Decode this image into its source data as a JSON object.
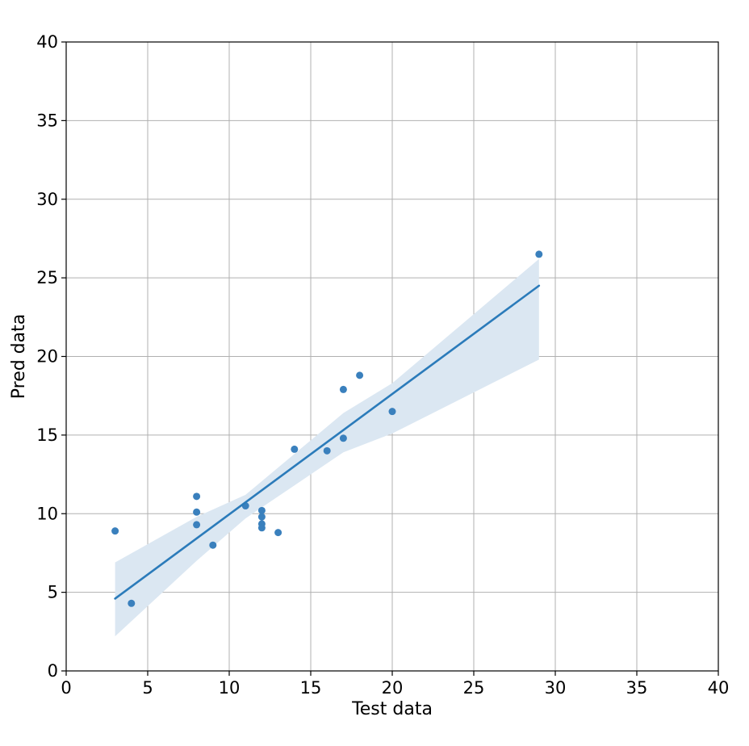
{
  "chart_data": {
    "type": "scatter",
    "xlabel": "Test data",
    "ylabel": "Pred data",
    "xlim": [
      0,
      40
    ],
    "ylim": [
      0,
      40
    ],
    "xticks": [
      "0",
      "5",
      "10",
      "15",
      "20",
      "25",
      "30",
      "35",
      "40"
    ],
    "yticks": [
      "0",
      "5",
      "10",
      "15",
      "20",
      "25",
      "30",
      "35",
      "40"
    ],
    "grid": true,
    "colors": {
      "points": "#3a80bd",
      "line": "#2b7bba",
      "band": "#dbe7f2",
      "grid": "#b0b0b0"
    },
    "points": [
      {
        "x": 3,
        "y": 8.9
      },
      {
        "x": 4,
        "y": 4.3
      },
      {
        "x": 8,
        "y": 11.1
      },
      {
        "x": 8,
        "y": 10.1
      },
      {
        "x": 8,
        "y": 9.3
      },
      {
        "x": 9,
        "y": 8.0
      },
      {
        "x": 11,
        "y": 10.5
      },
      {
        "x": 12,
        "y": 10.2
      },
      {
        "x": 12,
        "y": 9.8
      },
      {
        "x": 12,
        "y": 9.35
      },
      {
        "x": 12,
        "y": 9.1
      },
      {
        "x": 13,
        "y": 8.8
      },
      {
        "x": 14,
        "y": 14.1
      },
      {
        "x": 16,
        "y": 14.0
      },
      {
        "x": 17,
        "y": 17.9
      },
      {
        "x": 17,
        "y": 14.8
      },
      {
        "x": 18,
        "y": 18.8
      },
      {
        "x": 20,
        "y": 16.5
      },
      {
        "x": 29,
        "y": 26.5
      }
    ],
    "regression": {
      "x": [
        3,
        29
      ],
      "y": [
        4.6,
        24.5
      ]
    },
    "confidence_band": {
      "x": [
        3,
        8,
        11,
        14,
        17,
        20,
        29
      ],
      "upper": [
        6.9,
        9.8,
        11.2,
        13.8,
        16.4,
        18.3,
        26.2
      ],
      "lower": [
        2.2,
        7.0,
        9.7,
        11.8,
        13.9,
        15.1,
        19.8
      ]
    }
  }
}
